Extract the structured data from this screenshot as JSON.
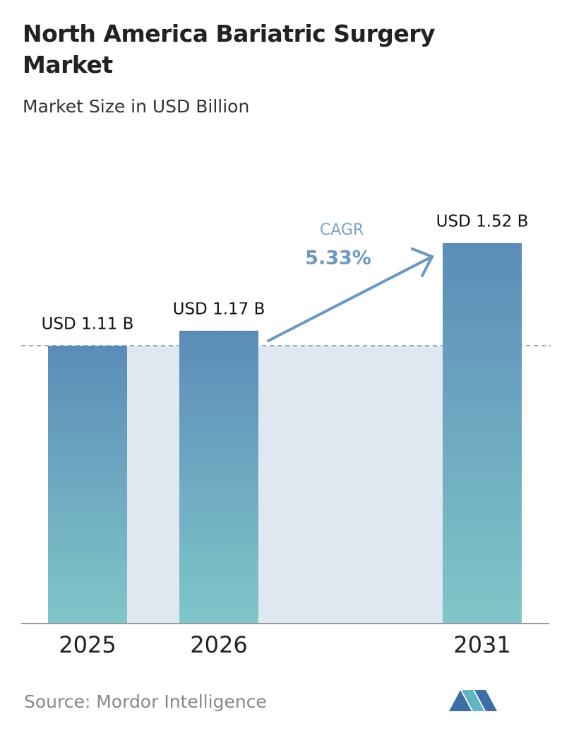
{
  "chart_data": {
    "type": "bar",
    "title": "North America Bariatric Surgery Market",
    "subtitle": "Market Size in USD Billion",
    "categories": [
      "2025",
      "2026",
      "2031"
    ],
    "values": [
      1.11,
      1.17,
      1.52
    ],
    "value_labels": [
      "USD 1.11 B",
      "USD 1.17 B",
      "USD 1.52 B"
    ],
    "annotations": {
      "cagr_label": "CAGR",
      "cagr_value": "5.33%"
    },
    "source": "Source: Mordor Intelligence"
  }
}
